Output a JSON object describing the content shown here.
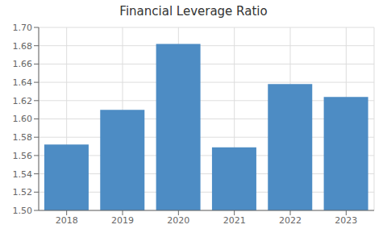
{
  "chart_data": {
    "type": "bar",
    "title": "Financial Leverage Ratio",
    "categories": [
      "2018",
      "2019",
      "2020",
      "2021",
      "2022",
      "2023"
    ],
    "values": [
      1.572,
      1.61,
      1.682,
      1.569,
      1.638,
      1.624
    ],
    "color": "#4d8cc4",
    "ylim": [
      1.5,
      1.7
    ],
    "yticks": [
      {
        "value": 1.5,
        "label": "1.50"
      },
      1.52,
      1.54,
      1.56,
      1.58,
      {
        "value": 1.6,
        "label": "1.60"
      },
      1.62,
      1.64,
      1.66,
      1.68,
      {
        "value": 1.7,
        "label": "1.70"
      }
    ],
    "grid": true
  }
}
